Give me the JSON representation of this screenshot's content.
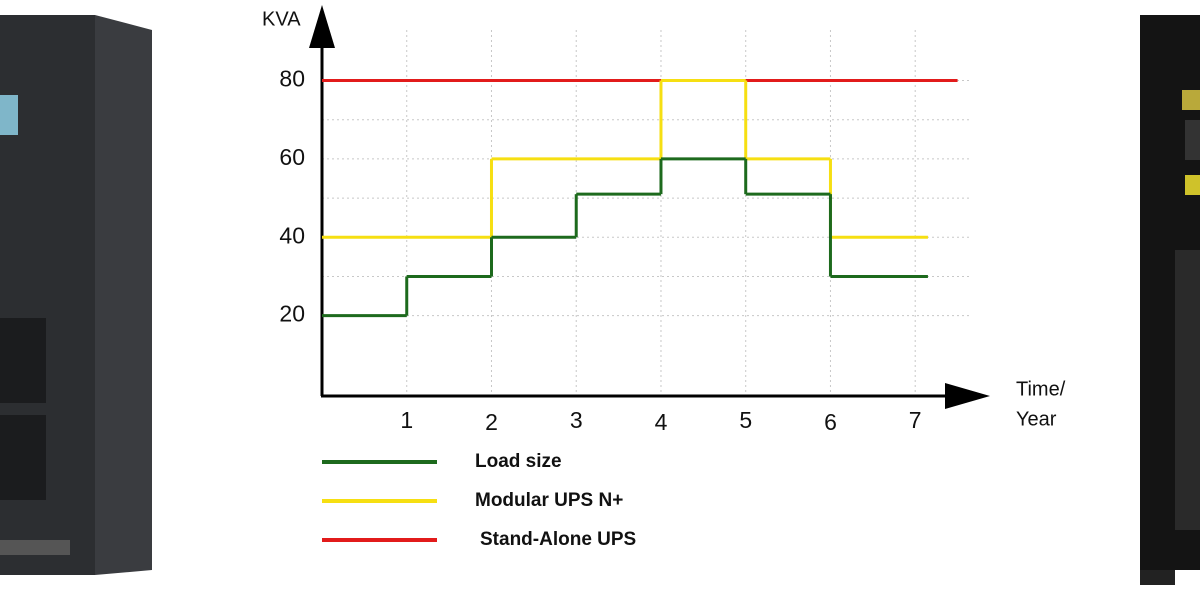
{
  "chart_data": {
    "type": "step",
    "y_label": "KVA",
    "x_label": [
      "Time/",
      "Year"
    ],
    "xlim": [
      0,
      7.8
    ],
    "ylim": [
      0,
      98
    ],
    "xticks": [
      1,
      2,
      3,
      4,
      5,
      6,
      7
    ],
    "yticks": [
      20,
      40,
      60,
      80
    ],
    "minor_yticks": [
      30,
      50,
      70
    ],
    "grid": true,
    "series": [
      {
        "name": "Load size",
        "color": "#1d6a1d",
        "x": [
          0,
          1,
          2,
          3,
          4,
          5,
          6
        ],
        "x_end": 7.15,
        "values": [
          20,
          30,
          40,
          51,
          60,
          51,
          30
        ]
      },
      {
        "name": "Modular UPS N+",
        "color": "#f6df12",
        "x": [
          0,
          2,
          4,
          5,
          6
        ],
        "x_end": 7.15,
        "values": [
          40,
          60,
          80,
          60,
          40
        ]
      },
      {
        "name": "Stand-Alone UPS",
        "color": "#e21b1b",
        "x": [
          0
        ],
        "x_end": 7.5,
        "values": [
          80
        ]
      }
    ]
  }
}
